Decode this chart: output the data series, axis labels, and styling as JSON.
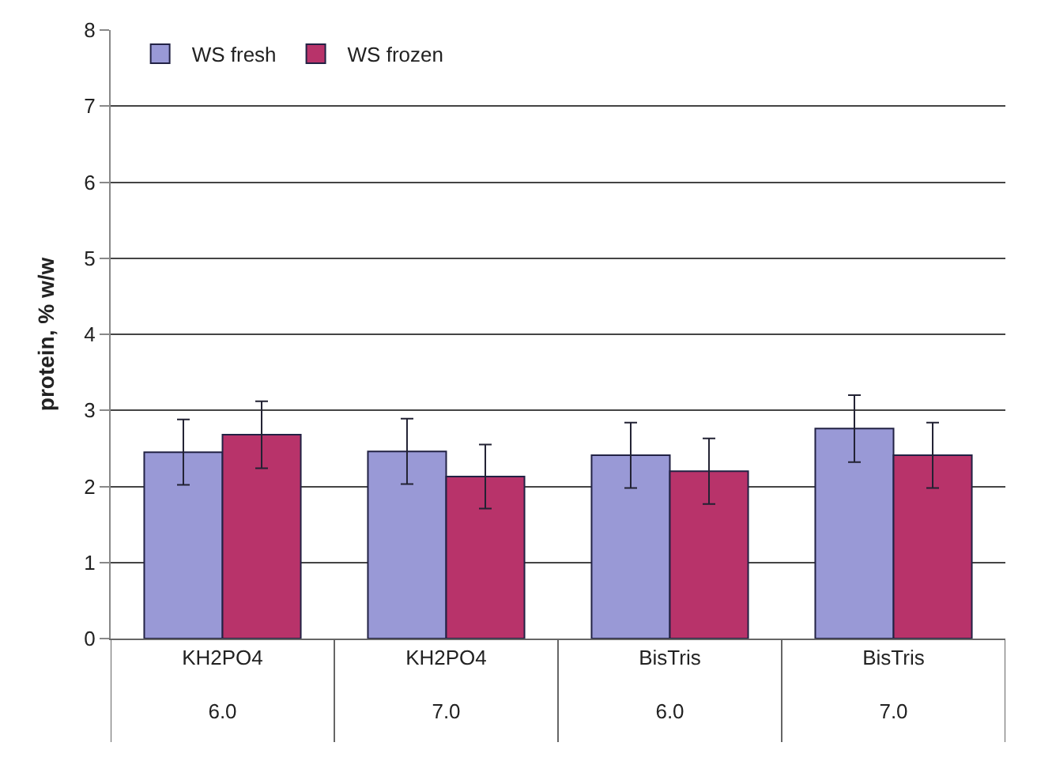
{
  "chart_data": {
    "type": "bar",
    "ylabel": "protein, % w/w",
    "categories": [
      "KH2PO4\n6.0",
      "KH2PO4\n7.0",
      "BisTris\n6.0",
      "BisTris\n7.0"
    ],
    "series": [
      {
        "name": "WS fresh",
        "color": "#9999d6",
        "values": [
          2.45,
          2.46,
          2.41,
          2.76
        ],
        "errors": [
          0.43,
          0.43,
          0.43,
          0.44
        ]
      },
      {
        "name": "WS frozen",
        "color": "#b8336a",
        "values": [
          2.68,
          2.13,
          2.2,
          2.41
        ],
        "errors": [
          0.44,
          0.42,
          0.43,
          0.43
        ]
      }
    ],
    "ylim": [
      0,
      8
    ],
    "yticks": [
      0,
      1,
      2,
      3,
      4,
      5,
      6,
      7,
      8
    ],
    "grid": "y",
    "legend": "top left"
  }
}
